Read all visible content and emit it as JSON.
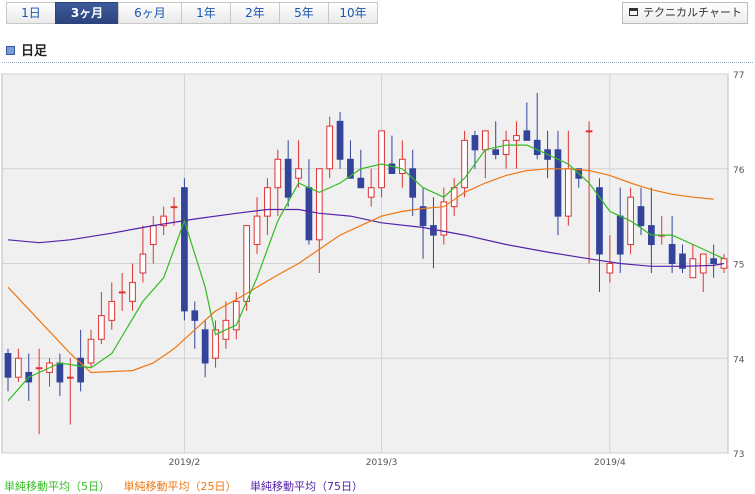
{
  "tabs": [
    {
      "label": "1日"
    },
    {
      "label": "3ヶ月"
    },
    {
      "label": "6ヶ月"
    },
    {
      "label": "1年"
    },
    {
      "label": "2年"
    },
    {
      "label": "5年"
    },
    {
      "label": "10年"
    }
  ],
  "active_tab": 1,
  "technical_button": "テクニカルチャート",
  "chart_title": "日足",
  "legend": {
    "ma5": "単純移動平均（5日）",
    "ma25": "単純移動平均（25日）",
    "ma75": "単純移動平均（75日）"
  },
  "colors": {
    "ma5": "#33bb22",
    "ma25": "#ee7711",
    "ma75": "#5522aa",
    "up": "#dd3333",
    "down": "#33449a"
  },
  "chart_data": {
    "type": "candlestick",
    "title": "日足",
    "y_ticks": [
      "77",
      "76",
      "75",
      "74",
      "73"
    ],
    "ylim": [
      73,
      77
    ],
    "x_ticks": [
      {
        "index": 17,
        "label": "2019/2"
      },
      {
        "index": 36,
        "label": "2019/3"
      },
      {
        "index": 58,
        "label": "2019/4"
      }
    ],
    "grid": true,
    "legend_position": "bottom",
    "candles": [
      [
        74.05,
        74.1,
        73.65,
        73.8
      ],
      [
        73.8,
        74.1,
        73.75,
        74.0
      ],
      [
        73.85,
        74.05,
        73.55,
        73.75
      ],
      [
        73.9,
        74.1,
        73.2,
        73.9
      ],
      [
        73.85,
        74.0,
        73.7,
        73.95
      ],
      [
        73.95,
        74.05,
        73.6,
        73.75
      ],
      [
        73.8,
        74.0,
        73.3,
        73.8
      ],
      [
        74.0,
        74.3,
        73.65,
        73.75
      ],
      [
        73.95,
        74.3,
        73.9,
        74.2
      ],
      [
        74.2,
        74.7,
        74.15,
        74.45
      ],
      [
        74.4,
        74.8,
        74.3,
        74.6
      ],
      [
        74.7,
        74.9,
        74.5,
        74.7
      ],
      [
        74.6,
        75.0,
        74.5,
        74.8
      ],
      [
        74.9,
        75.4,
        74.8,
        75.1
      ],
      [
        75.2,
        75.5,
        75.0,
        75.4
      ],
      [
        75.4,
        75.6,
        75.3,
        75.5
      ],
      [
        75.6,
        75.7,
        75.4,
        75.6
      ],
      [
        75.8,
        75.9,
        74.4,
        74.5
      ],
      [
        74.5,
        74.6,
        74.1,
        74.4
      ],
      [
        74.3,
        74.4,
        73.8,
        73.95
      ],
      [
        74.0,
        74.4,
        73.9,
        74.3
      ],
      [
        74.2,
        74.6,
        74.1,
        74.4
      ],
      [
        74.3,
        74.7,
        74.2,
        74.6
      ],
      [
        74.6,
        75.4,
        74.5,
        75.4
      ],
      [
        75.2,
        75.7,
        75.1,
        75.5
      ],
      [
        75.5,
        75.9,
        75.3,
        75.8
      ],
      [
        75.8,
        76.2,
        75.5,
        76.1
      ],
      [
        76.1,
        76.3,
        75.6,
        75.7
      ],
      [
        75.9,
        76.3,
        75.8,
        76.0
      ],
      [
        75.8,
        76.1,
        75.2,
        75.25
      ],
      [
        75.25,
        76.0,
        74.9,
        76.0
      ],
      [
        76.0,
        76.55,
        75.9,
        76.45
      ],
      [
        76.5,
        76.6,
        76.0,
        76.1
      ],
      [
        76.1,
        76.3,
        75.9,
        75.9
      ],
      [
        75.9,
        76.2,
        75.8,
        75.8
      ],
      [
        75.7,
        76.0,
        75.6,
        75.8
      ],
      [
        75.8,
        76.4,
        75.7,
        76.4
      ],
      [
        76.05,
        76.35,
        75.95,
        75.95
      ],
      [
        75.95,
        76.3,
        75.8,
        76.1
      ],
      [
        76.0,
        76.2,
        75.5,
        75.7
      ],
      [
        75.6,
        75.8,
        75.05,
        75.4
      ],
      [
        75.4,
        75.7,
        74.95,
        75.3
      ],
      [
        75.3,
        75.8,
        75.2,
        75.65
      ],
      [
        75.6,
        75.9,
        75.5,
        75.8
      ],
      [
        75.8,
        76.4,
        75.7,
        76.3
      ],
      [
        76.35,
        76.4,
        76.0,
        76.2
      ],
      [
        76.2,
        76.4,
        75.9,
        76.4
      ],
      [
        76.2,
        76.5,
        76.1,
        76.15
      ],
      [
        76.15,
        76.4,
        76.0,
        76.3
      ],
      [
        76.3,
        76.5,
        76.0,
        76.35
      ],
      [
        76.4,
        76.7,
        76.3,
        76.3
      ],
      [
        76.3,
        76.8,
        76.1,
        76.15
      ],
      [
        76.2,
        76.4,
        75.9,
        76.1
      ],
      [
        76.2,
        76.4,
        75.3,
        75.5
      ],
      [
        75.5,
        76.4,
        75.4,
        76.0
      ],
      [
        76.0,
        76.0,
        75.8,
        75.9
      ],
      [
        76.4,
        76.5,
        75.0,
        76.4
      ],
      [
        75.8,
        75.9,
        74.7,
        75.1
      ],
      [
        74.9,
        75.3,
        74.8,
        75.0
      ],
      [
        75.5,
        75.8,
        74.9,
        75.1
      ],
      [
        75.2,
        75.8,
        75.1,
        75.7
      ],
      [
        75.6,
        75.8,
        75.3,
        75.4
      ],
      [
        75.4,
        75.8,
        74.9,
        75.2
      ],
      [
        75.3,
        75.5,
        75.2,
        75.3
      ],
      [
        75.2,
        75.5,
        74.9,
        75.0
      ],
      [
        75.1,
        75.2,
        74.9,
        74.95
      ],
      [
        74.85,
        75.2,
        74.85,
        75.05
      ],
      [
        74.9,
        75.1,
        74.7,
        75.1
      ],
      [
        75.05,
        75.2,
        74.85,
        75.0
      ],
      [
        74.95,
        75.1,
        74.9,
        75.05
      ]
    ],
    "ma5": [
      [
        0,
        73.55
      ],
      [
        2,
        73.8
      ],
      [
        5,
        73.95
      ],
      [
        8,
        73.9
      ],
      [
        10,
        74.05
      ],
      [
        13,
        74.6
      ],
      [
        15,
        74.85
      ],
      [
        17,
        75.45
      ],
      [
        19,
        74.75
      ],
      [
        20,
        74.25
      ],
      [
        22,
        74.35
      ],
      [
        24,
        74.85
      ],
      [
        26,
        75.45
      ],
      [
        28,
        75.85
      ],
      [
        30,
        75.75
      ],
      [
        32,
        75.85
      ],
      [
        34,
        76.0
      ],
      [
        36,
        76.05
      ],
      [
        38,
        76.0
      ],
      [
        40,
        75.8
      ],
      [
        42,
        75.7
      ],
      [
        44,
        75.9
      ],
      [
        46,
        76.2
      ],
      [
        48,
        76.25
      ],
      [
        50,
        76.25
      ],
      [
        52,
        76.15
      ],
      [
        54,
        76.05
      ],
      [
        55,
        75.95
      ],
      [
        56,
        75.85
      ],
      [
        58,
        75.55
      ],
      [
        60,
        75.45
      ],
      [
        62,
        75.3
      ],
      [
        64,
        75.3
      ],
      [
        66,
        75.2
      ],
      [
        68,
        75.1
      ],
      [
        69,
        75.05
      ]
    ],
    "ma25": [
      [
        0,
        74.75
      ],
      [
        3,
        74.4
      ],
      [
        6,
        74.05
      ],
      [
        8,
        73.85
      ],
      [
        12,
        73.87
      ],
      [
        14,
        73.95
      ],
      [
        16,
        74.1
      ],
      [
        18,
        74.3
      ],
      [
        20,
        74.5
      ],
      [
        22,
        74.62
      ],
      [
        24,
        74.75
      ],
      [
        26,
        74.88
      ],
      [
        28,
        75.0
      ],
      [
        30,
        75.15
      ],
      [
        32,
        75.3
      ],
      [
        34,
        75.4
      ],
      [
        36,
        75.5
      ],
      [
        38,
        75.55
      ],
      [
        40,
        75.58
      ],
      [
        42,
        75.6
      ],
      [
        44,
        75.75
      ],
      [
        46,
        75.85
      ],
      [
        48,
        75.93
      ],
      [
        50,
        75.98
      ],
      [
        52,
        76.0
      ],
      [
        54,
        76.0
      ],
      [
        56,
        75.98
      ],
      [
        58,
        75.93
      ],
      [
        60,
        75.85
      ],
      [
        62,
        75.78
      ],
      [
        64,
        75.73
      ],
      [
        66,
        75.7
      ],
      [
        68,
        75.68
      ]
    ],
    "ma75": [
      [
        0,
        75.25
      ],
      [
        3,
        75.22
      ],
      [
        6,
        75.25
      ],
      [
        10,
        75.32
      ],
      [
        14,
        75.4
      ],
      [
        18,
        75.47
      ],
      [
        22,
        75.53
      ],
      [
        25,
        75.57
      ],
      [
        28,
        75.57
      ],
      [
        30,
        75.53
      ],
      [
        33,
        75.5
      ],
      [
        36,
        75.43
      ],
      [
        40,
        75.38
      ],
      [
        44,
        75.3
      ],
      [
        48,
        75.2
      ],
      [
        52,
        75.12
      ],
      [
        56,
        75.05
      ],
      [
        59,
        75.0
      ],
      [
        62,
        74.97
      ],
      [
        65,
        74.97
      ],
      [
        68,
        74.98
      ],
      [
        69,
        75.0
      ]
    ]
  }
}
